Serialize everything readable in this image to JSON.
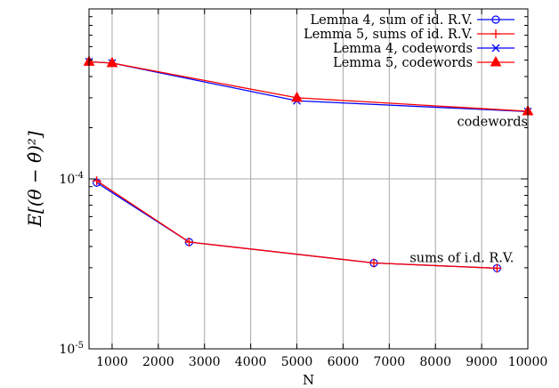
{
  "chart_data": {
    "type": "line",
    "xlabel": "N",
    "ylabel": "E[(θ − θ̂)²]",
    "xlim": [
      500,
      10000
    ],
    "ylim": [
      1e-05,
      0.001
    ],
    "yscale": "log",
    "grid": true,
    "legend_position": "top-right",
    "x_ticks": [
      "1000",
      "2000",
      "3000",
      "4000",
      "5000",
      "6000",
      "7000",
      "8000",
      "9000",
      "10000"
    ],
    "y_ticks": [
      {
        "base": "10",
        "exp": "-4",
        "value": 0.0001
      },
      {
        "base": "10",
        "exp": "-5",
        "value": 1e-05
      }
    ],
    "series": [
      {
        "name": "Lemma 4, sum of id. R.V.",
        "color": "#0000ff",
        "marker": "circle",
        "x": [
          667,
          2667,
          6667,
          9333
        ],
        "y": [
          9.5e-05,
          4.25e-05,
          3.2e-05,
          2.98e-05
        ]
      },
      {
        "name": "Lemma 5, sums of id. R.V.",
        "color": "#ff0000",
        "marker": "plus",
        "x": [
          667,
          2667,
          6667,
          9333
        ],
        "y": [
          9.75e-05,
          4.25e-05,
          3.2e-05,
          2.98e-05
        ]
      },
      {
        "name": "Lemma 4, codewords",
        "color": "#0000ff",
        "marker": "x",
        "x": [
          500,
          1000,
          5000,
          10000
        ],
        "y": [
          0.000489,
          0.00048,
          0.000288,
          0.000249
        ]
      },
      {
        "name": "Lemma 5, codewords",
        "color": "#ff0000",
        "marker": "triangle",
        "x": [
          500,
          1000,
          5000,
          10000
        ],
        "y": [
          0.000489,
          0.00048,
          0.0003,
          0.00025
        ]
      }
    ],
    "annotations": [
      {
        "text": "codewords",
        "x": 10000,
        "y": 0.000217
      },
      {
        "text": "sums of i.d. R.V.",
        "x": 9700,
        "y": 3.45e-05
      }
    ]
  }
}
